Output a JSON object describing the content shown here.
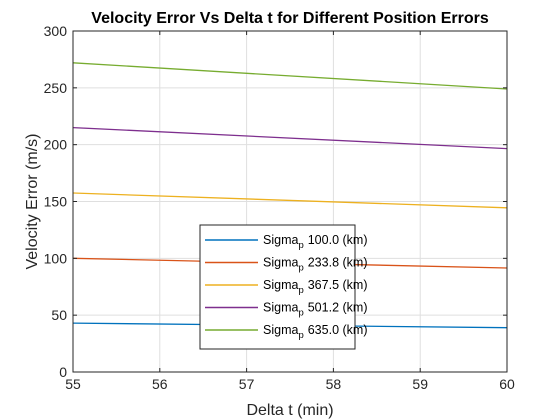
{
  "chart_data": {
    "type": "line",
    "title": "Velocity Error Vs Delta t for Different Position Errors",
    "xlabel": "Delta t (min)",
    "ylabel": "Velocity Error (m/s)",
    "xlim": [
      55,
      60
    ],
    "ylim": [
      0,
      300
    ],
    "xticks": [
      55,
      56,
      57,
      58,
      59,
      60
    ],
    "yticks": [
      0,
      50,
      100,
      150,
      200,
      250,
      300
    ],
    "xtick_labels": [
      "55",
      "56",
      "57",
      "58",
      "59",
      "60"
    ],
    "ytick_labels": [
      "0",
      "50",
      "100",
      "150",
      "200",
      "250",
      "300"
    ],
    "grid": true,
    "legend_placement": "bottom-center",
    "series": [
      {
        "name": "Sigma_p 100.0 (km)",
        "legend_main": "Sigma",
        "legend_sub": "p",
        "legend_rest": "100.0 (km)",
        "color": "#0072BD",
        "x": [
          55,
          60
        ],
        "y": [
          43,
          39
        ]
      },
      {
        "name": "Sigma_p 233.8 (km)",
        "legend_main": "Sigma",
        "legend_sub": "p",
        "legend_rest": "233.8 (km)",
        "color": "#D95319",
        "x": [
          55,
          60
        ],
        "y": [
          100,
          91.5
        ]
      },
      {
        "name": "Sigma_p 367.5 (km)",
        "legend_main": "Sigma",
        "legend_sub": "p",
        "legend_rest": "367.5 (km)",
        "color": "#EDB120",
        "x": [
          55,
          60
        ],
        "y": [
          157.5,
          144.5
        ]
      },
      {
        "name": "Sigma_p 501.2 (km)",
        "legend_main": "Sigma",
        "legend_sub": "p",
        "legend_rest": "501.2 (km)",
        "color": "#7E2F8E",
        "x": [
          55,
          60
        ],
        "y": [
          215,
          196.5
        ]
      },
      {
        "name": "Sigma_p 635.0 (km)",
        "legend_main": "Sigma",
        "legend_sub": "p",
        "legend_rest": "635.0 (km)",
        "color": "#77AC30",
        "x": [
          55,
          60
        ],
        "y": [
          272,
          249
        ]
      }
    ]
  }
}
